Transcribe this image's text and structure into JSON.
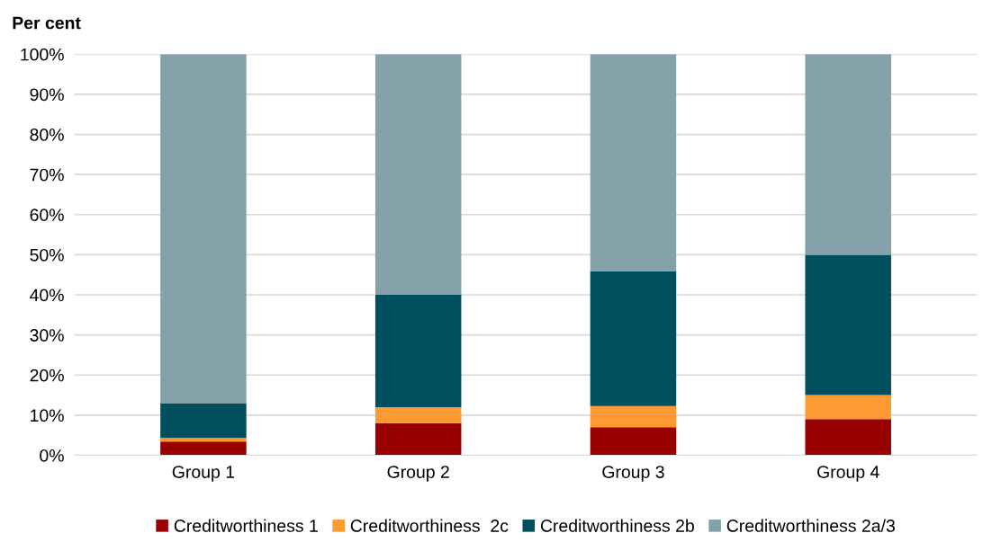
{
  "chart_data": {
    "type": "bar",
    "stacked": true,
    "ylabel": "Per cent",
    "categories": [
      "Group 1",
      "Group 2",
      "Group 3",
      "Group 4"
    ],
    "series": [
      {
        "name": "Creditworthiness 1",
        "color": "#990000",
        "values": [
          3.4,
          8,
          7,
          9
        ]
      },
      {
        "name": "Creditworthiness  2c",
        "color": "#ff9933",
        "values": [
          0.9,
          4,
          5.3,
          6
        ]
      },
      {
        "name": "Creditworthiness 2b",
        "color": "#004f5e",
        "values": [
          8.6,
          28,
          33.6,
          35
        ]
      },
      {
        "name": "Creditworthiness 2a/3",
        "color": "#84a1aa",
        "values": [
          87.1,
          60,
          54.1,
          50
        ]
      }
    ],
    "ylim": [
      0,
      100
    ],
    "yticks": [
      {
        "value": 0,
        "label": "0%"
      },
      {
        "value": 10,
        "label": "10%"
      },
      {
        "value": 20,
        "label": "20%"
      },
      {
        "value": 30,
        "label": "30%"
      },
      {
        "value": 40,
        "label": "40%"
      },
      {
        "value": 50,
        "label": "50%"
      },
      {
        "value": 60,
        "label": "60%"
      },
      {
        "value": 70,
        "label": "70%"
      },
      {
        "value": 80,
        "label": "80%"
      },
      {
        "value": 90,
        "label": "90%"
      },
      {
        "value": 100,
        "label": "100%"
      }
    ],
    "grid": "y",
    "legend": "bottom"
  }
}
